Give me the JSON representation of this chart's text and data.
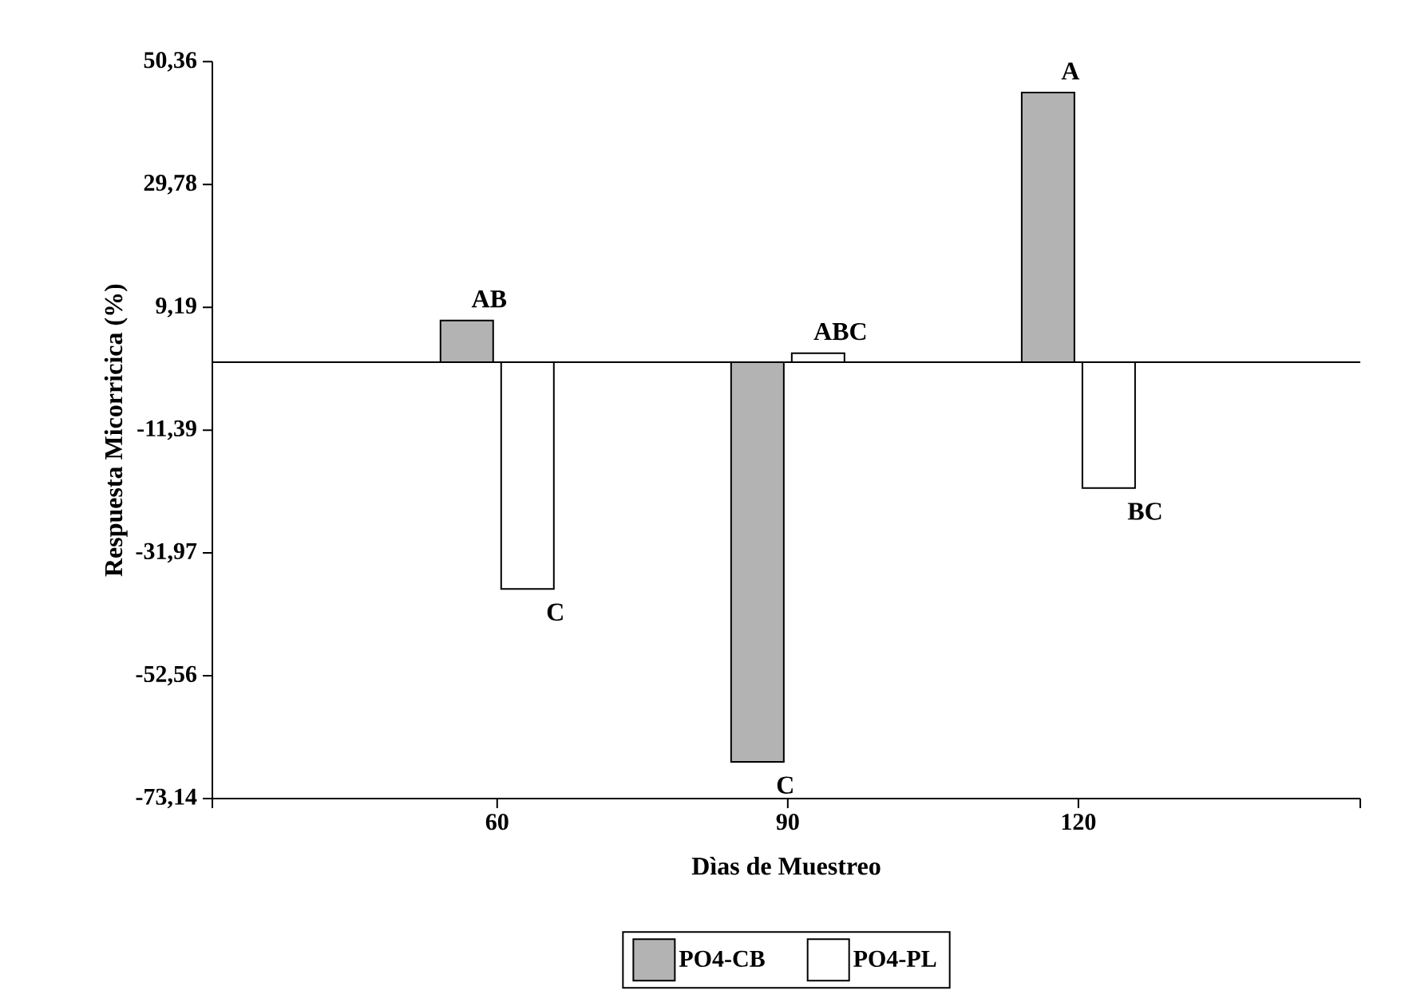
{
  "chart_data": {
    "type": "bar",
    "xlabel": "Dìas de Muestreo",
    "ylabel": "Respuesta Micorricica (%)",
    "categories": [
      "60",
      "90",
      "120"
    ],
    "series": [
      {
        "name": "PO4-CB",
        "color": "#b3b3b3",
        "values": [
          7.0,
          -67.0,
          45.2
        ]
      },
      {
        "name": "PO4-PL",
        "color": "#ffffff",
        "values": [
          -38.0,
          1.5,
          -21.1
        ]
      }
    ],
    "ylim": [
      -73.14,
      50.36
    ],
    "yticks": [
      {
        "value": -73.14,
        "label": "-73,14"
      },
      {
        "value": -52.56,
        "label": "-52,56"
      },
      {
        "value": -31.97,
        "label": "-31,97"
      },
      {
        "value": -11.39,
        "label": "-11,39"
      },
      {
        "value": 9.19,
        "label": "9,19"
      },
      {
        "value": 29.78,
        "label": "29,78"
      },
      {
        "value": 50.36,
        "label": "50,36"
      }
    ],
    "annotations": [
      {
        "text": "AB",
        "x": "60",
        "y": 7.0
      },
      {
        "text": "C",
        "x": "60",
        "y": -38.0
      },
      {
        "text": "C",
        "x": "90",
        "y": -67.0
      },
      {
        "text": "ABC",
        "x": "90",
        "y": 1.5
      },
      {
        "text": "A",
        "x": "120",
        "y": 45.2
      },
      {
        "text": "BC",
        "x": "120",
        "y": -21.1
      }
    ],
    "legend": "bottom"
  }
}
